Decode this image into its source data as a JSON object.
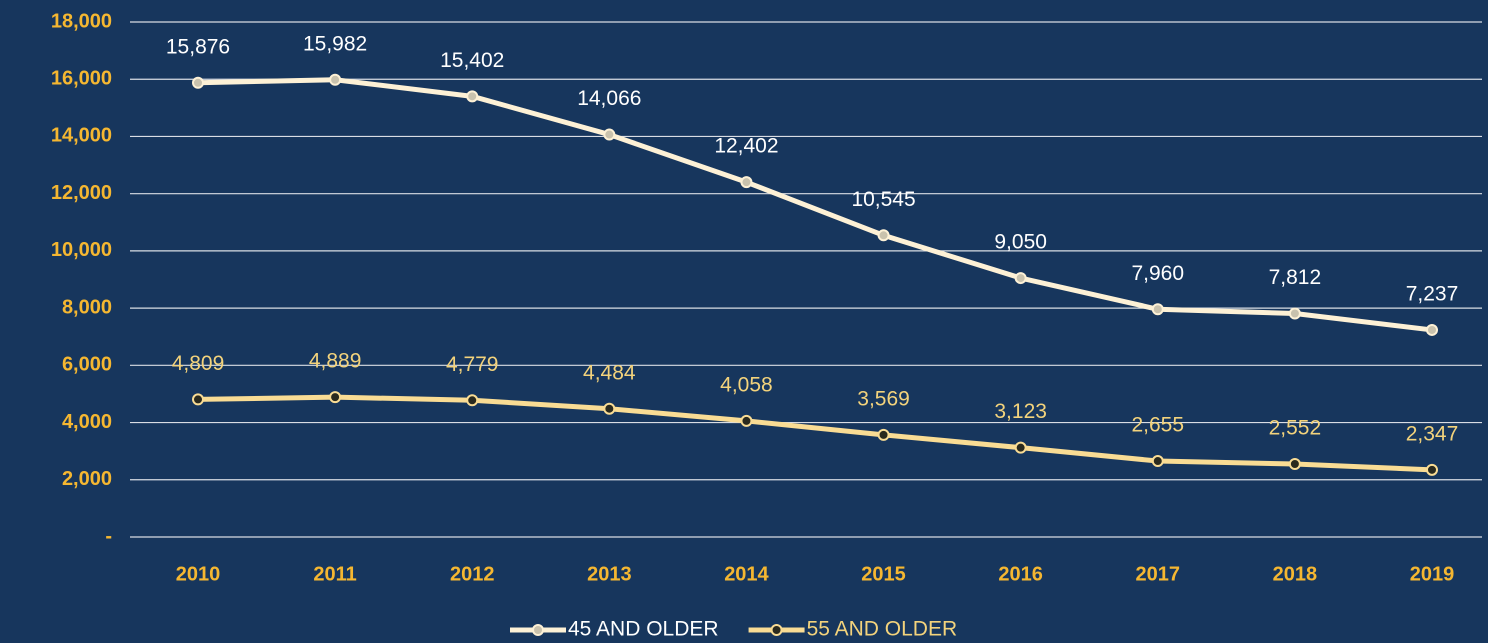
{
  "chart_data": {
    "type": "line",
    "categories": [
      "2010",
      "2011",
      "2012",
      "2013",
      "2014",
      "2015",
      "2016",
      "2017",
      "2018",
      "2019"
    ],
    "series": [
      {
        "name": "45 AND OLDER",
        "color": "#fdf1d6",
        "marker_color": "#c9c2ad",
        "label_color": "#ffffff",
        "values": [
          15876,
          15982,
          15402,
          14066,
          12402,
          10545,
          9050,
          7960,
          7812,
          7237
        ],
        "value_labels": [
          "15,876",
          "15,982",
          "15,402",
          "14,066",
          "12,402",
          "10,545",
          "9,050",
          "7,960",
          "7,812",
          "7,237"
        ]
      },
      {
        "name": "55 AND OLDER",
        "color": "#f9dc94",
        "marker_color": "#2a2a1e",
        "label_color": "#f3d37c",
        "values": [
          4809,
          4889,
          4779,
          4484,
          4058,
          3569,
          3123,
          2655,
          2552,
          2347
        ],
        "value_labels": [
          "4,809",
          "4,889",
          "4,779",
          "4,484",
          "4,058",
          "3,569",
          "3,123",
          "2,655",
          "2,552",
          "2,347"
        ]
      }
    ],
    "ylim": [
      0,
      18000
    ],
    "yticks": [
      {
        "value": 0,
        "label": "-"
      },
      {
        "value": 2000,
        "label": "2,000"
      },
      {
        "value": 4000,
        "label": "4,000"
      },
      {
        "value": 6000,
        "label": "6,000"
      },
      {
        "value": 8000,
        "label": "8,000"
      },
      {
        "value": 10000,
        "label": "10,000"
      },
      {
        "value": 12000,
        "label": "12,000"
      },
      {
        "value": 14000,
        "label": "14,000"
      },
      {
        "value": 16000,
        "label": "16,000"
      },
      {
        "value": 18000,
        "label": "18,000"
      }
    ],
    "grid": true,
    "legend": "bottom"
  }
}
